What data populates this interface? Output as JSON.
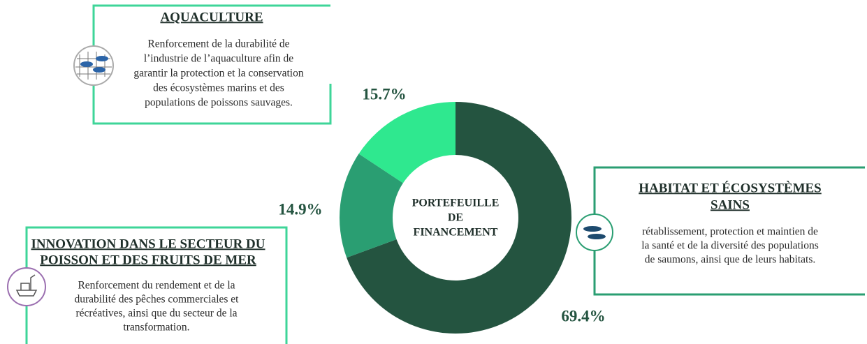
{
  "chart_data": {
    "type": "pie",
    "center_label": [
      "PORTEFEUILLE",
      "DE",
      "FINANCEMENT"
    ],
    "categories": [
      [
        "HABITAT ET ÉCOSYSTÈMES",
        "SAINS"
      ],
      [
        "INNOVATION DANS LE SECTEUR DU",
        "POISSON ET DES FRUITS DE MER"
      ],
      [
        "AQUACULTURE"
      ]
    ],
    "descriptions": [
      [
        "rétablissement, protection et maintien de",
        "la santé et de la diversité des populations",
        "de saumons, ainsi que de leurs habitats."
      ],
      [
        "Renforcement du rendement et de la",
        "durabilité des pêches commerciales et",
        "récréatives, ainsi que du secteur de la",
        "transformation."
      ],
      [
        "Renforcement de la durabilité de",
        "l’industrie de l’aquaculture afin de",
        "garantir la protection et la conservation",
        "des écosystèmes marins et des",
        "populations de poissons sauvages."
      ]
    ],
    "values": [
      69.4,
      14.9,
      15.7
    ],
    "value_labels": [
      "69.4%",
      "14.9%",
      "15.7%"
    ],
    "colors": [
      "#245440",
      "#2a9e72",
      "#2fe88f"
    ]
  }
}
